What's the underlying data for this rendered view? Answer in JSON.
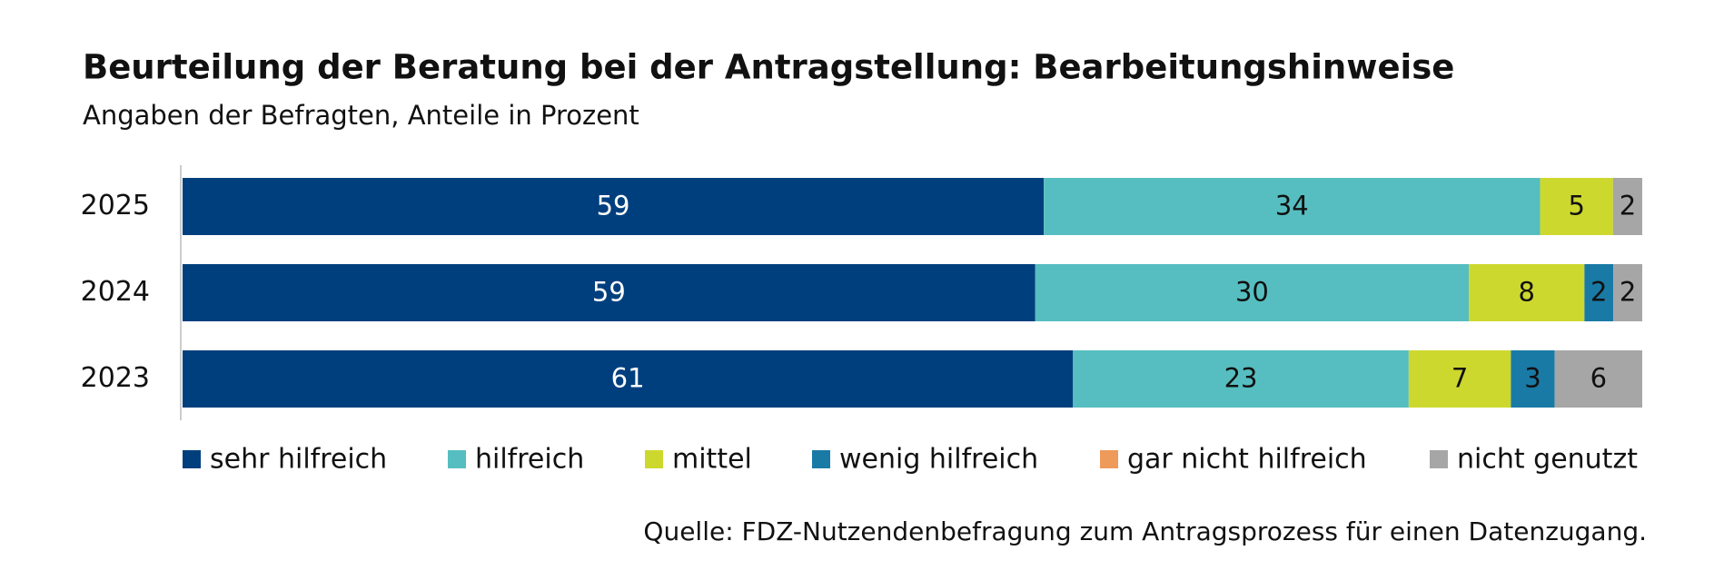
{
  "chart_data": {
    "type": "stacked-bar-horizontal",
    "title": "Beurteilung der Beratung bei der Antragstellung: Bearbeitungshinweise",
    "subtitle": "Angaben der Befragten, Anteile in Prozent",
    "source": "Quelle: FDZ-Nutzendenbefragung zum Antragsprozess für einen Datenzugang.",
    "categories": [
      "2025",
      "2024",
      "2023"
    ],
    "series": [
      {
        "name": "sehr hilfreich",
        "color": "#003f7d",
        "values": [
          59,
          59,
          61
        ]
      },
      {
        "name": "hilfreich",
        "color": "#56bec0",
        "values": [
          34,
          30,
          23
        ]
      },
      {
        "name": "mittel",
        "color": "#cdd82e",
        "values": [
          5,
          8,
          7
        ]
      },
      {
        "name": "wenig hilfreich",
        "color": "#1a7aa6",
        "values": [
          null,
          2,
          3
        ]
      },
      {
        "name": "gar nicht hilfreich",
        "color": "#ee9a5a",
        "values": [
          null,
          null,
          null
        ]
      },
      {
        "name": "nicht genutzt",
        "color": "#a6a6a6",
        "values": [
          2,
          2,
          6
        ]
      }
    ],
    "legend": "bottom"
  }
}
